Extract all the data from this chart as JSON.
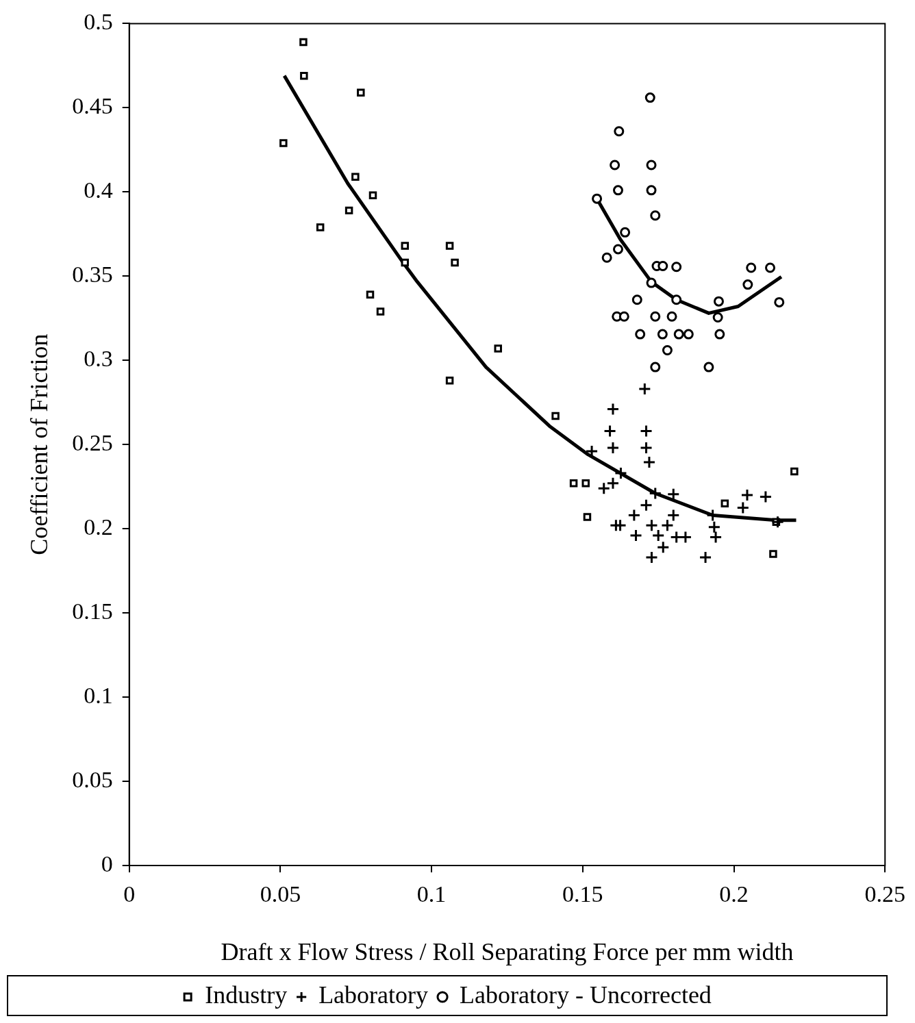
{
  "chart_data": {
    "type": "scatter",
    "xlabel": "Draft x Flow Stress / Roll Separating Force per mm width",
    "ylabel": "Coefficient of Friction",
    "xlim": [
      0,
      0.25
    ],
    "xticks": [
      0,
      0.05,
      0.1,
      0.15,
      0.2,
      0.25
    ],
    "ylim": [
      0,
      0.5
    ],
    "yticks": [
      0,
      0.05,
      0.1,
      0.15,
      0.2,
      0.25,
      0.3,
      0.35,
      0.4,
      0.45,
      0.5
    ],
    "grid": false,
    "legend": "bottom",
    "series": [
      {
        "name": "Industry",
        "color": "#000000",
        "marker": "square",
        "x": [
          0.0576,
          0.0578,
          0.0766,
          0.051,
          0.0748,
          0.0806,
          0.0632,
          0.0727,
          0.0912,
          0.0912,
          0.106,
          0.1077,
          0.0797,
          0.0831,
          0.122,
          0.106,
          0.141,
          0.147,
          0.151,
          0.1515,
          0.197,
          0.22,
          0.214,
          0.213
        ],
        "values": [
          0.489,
          0.469,
          0.459,
          0.429,
          0.409,
          0.398,
          0.379,
          0.389,
          0.368,
          0.358,
          0.368,
          0.358,
          0.339,
          0.329,
          0.307,
          0.288,
          0.267,
          0.227,
          0.227,
          0.207,
          0.215,
          0.234,
          0.204,
          0.185
        ]
      },
      {
        "name": "Laboratory",
        "color": "#000000",
        "marker": "cross",
        "x": [
          0.1705,
          0.16,
          0.159,
          0.171,
          0.16,
          0.171,
          0.172,
          0.153,
          0.1626,
          0.16,
          0.157,
          0.174,
          0.18,
          0.171,
          0.167,
          0.18,
          0.161,
          0.1624,
          0.1728,
          0.178,
          0.1676,
          0.175,
          0.181,
          0.184,
          0.1766,
          0.1728,
          0.1906,
          0.1935,
          0.194,
          0.2044,
          0.203,
          0.2105,
          0.2145,
          0.193
        ],
        "values": [
          0.283,
          0.271,
          0.258,
          0.258,
          0.248,
          0.248,
          0.2395,
          0.246,
          0.233,
          0.227,
          0.224,
          0.221,
          0.2205,
          0.214,
          0.208,
          0.208,
          0.202,
          0.202,
          0.202,
          0.202,
          0.196,
          0.196,
          0.195,
          0.195,
          0.189,
          0.183,
          0.183,
          0.201,
          0.195,
          0.22,
          0.2125,
          0.219,
          0.204,
          0.208
        ]
      },
      {
        "name": "Laboratory - Uncorrected",
        "color": "#000000",
        "marker": "circle",
        "x": [
          0.1723,
          0.162,
          0.1606,
          0.1727,
          0.1617,
          0.1727,
          0.174,
          0.1547,
          0.164,
          0.1617,
          0.158,
          0.1745,
          0.1765,
          0.181,
          0.2057,
          0.212,
          0.2046,
          0.1727,
          0.181,
          0.195,
          0.215,
          0.168,
          0.1613,
          0.1637,
          0.174,
          0.1795,
          0.1947,
          0.169,
          0.1764,
          0.1818,
          0.185,
          0.1953,
          0.178,
          0.174,
          0.1917
        ],
        "values": [
          0.456,
          0.436,
          0.416,
          0.416,
          0.401,
          0.401,
          0.386,
          0.396,
          0.376,
          0.366,
          0.361,
          0.356,
          0.356,
          0.3555,
          0.355,
          0.355,
          0.345,
          0.346,
          0.336,
          0.335,
          0.3345,
          0.336,
          0.326,
          0.326,
          0.326,
          0.326,
          0.3255,
          0.3155,
          0.3155,
          0.3155,
          0.3155,
          0.3155,
          0.306,
          0.296,
          0.296
        ]
      },
      {
        "type": "line",
        "color": "#000000",
        "marker": "none",
        "line_style": "solid",
        "x": [
          0.0513,
          0.0723,
          0.0908,
          0.0953,
          0.118,
          0.127,
          0.139,
          0.1518,
          0.174,
          0.193,
          0.214,
          0.2206
        ],
        "values": [
          0.469,
          0.405,
          0.3575,
          0.3466,
          0.296,
          0.281,
          0.261,
          0.244,
          0.221,
          0.208,
          0.205,
          0.205
        ]
      },
      {
        "type": "line",
        "color": "#000000",
        "marker": "none",
        "line_style": "solid",
        "x": [
          0.1547,
          0.1624,
          0.1727,
          0.181,
          0.1917,
          0.2014,
          0.2157
        ],
        "values": [
          0.396,
          0.372,
          0.3466,
          0.336,
          0.328,
          0.332,
          0.3496
        ]
      }
    ]
  }
}
